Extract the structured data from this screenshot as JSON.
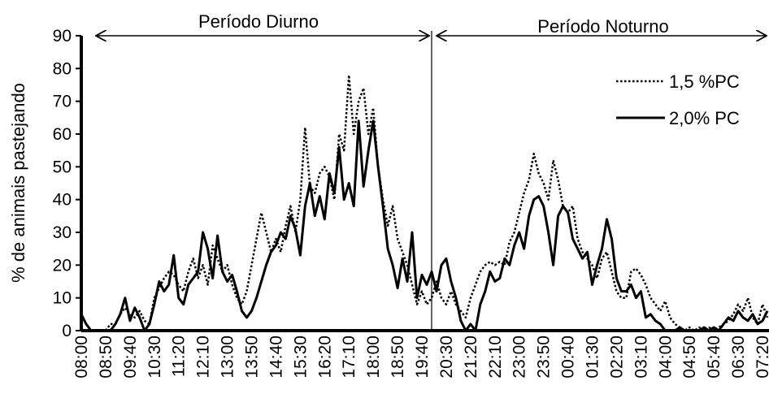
{
  "chart_data": {
    "type": "line",
    "y_label": "% de animais pastejando",
    "annotations": [
      "Período Diurno",
      "Período Noturno"
    ],
    "categories": [
      "08:00",
      null,
      null,
      null,
      null,
      "08:50",
      null,
      null,
      null,
      null,
      "09:40",
      null,
      null,
      null,
      null,
      "10:30",
      null,
      null,
      null,
      null,
      "11:20",
      null,
      null,
      null,
      null,
      "12:10",
      null,
      null,
      null,
      null,
      "13:00",
      null,
      null,
      null,
      null,
      "13:50",
      null,
      null,
      null,
      null,
      "14:40",
      null,
      null,
      null,
      null,
      "15:30",
      null,
      null,
      null,
      null,
      "16:20",
      null,
      null,
      null,
      null,
      "17:10",
      null,
      null,
      null,
      null,
      "18:00",
      null,
      null,
      null,
      null,
      "18:50",
      null,
      null,
      null,
      null,
      "19:40",
      null,
      null,
      null,
      null,
      "20:30",
      null,
      null,
      null,
      null,
      "21:20",
      null,
      null,
      null,
      null,
      "22:10",
      null,
      null,
      null,
      null,
      "23:00",
      null,
      null,
      null,
      null,
      "23:50",
      null,
      null,
      null,
      null,
      "00:40",
      null,
      null,
      null,
      null,
      "01:30",
      null,
      null,
      null,
      null,
      "02:20",
      null,
      null,
      null,
      null,
      "03:10",
      null,
      null,
      null,
      null,
      "04:00",
      null,
      null,
      null,
      null,
      "04:50",
      null,
      null,
      null,
      null,
      "05:40",
      null,
      null,
      null,
      null,
      "06:30",
      null,
      null,
      null,
      null,
      "07:20",
      null
    ],
    "series": [
      {
        "name": "1,5 %PC",
        "color": "#000000",
        "dash": "dotted",
        "values": [
          0,
          0,
          0,
          0,
          0,
          0,
          2,
          2,
          5,
          7,
          5,
          4,
          6,
          3,
          2,
          10,
          13,
          16,
          18,
          17,
          14,
          12,
          18,
          22,
          16,
          20,
          14,
          26,
          22,
          18,
          20,
          14,
          10,
          8,
          12,
          20,
          28,
          36,
          30,
          24,
          28,
          24,
          32,
          38,
          30,
          40,
          62,
          44,
          42,
          48,
          50,
          47,
          40,
          60,
          55,
          78,
          60,
          70,
          74,
          60,
          68,
          50,
          40,
          32,
          38,
          28,
          24,
          20,
          14,
          8,
          12,
          8,
          10,
          15,
          10,
          8,
          12,
          8,
          6,
          4,
          10,
          14,
          18,
          20,
          21,
          20,
          21,
          20,
          27,
          30,
          36,
          42,
          46,
          54,
          48,
          45,
          40,
          52,
          46,
          38,
          36,
          38,
          28,
          24,
          22,
          20,
          16,
          22,
          24,
          18,
          12,
          10,
          10,
          18,
          19,
          17,
          14,
          10,
          8,
          6,
          9,
          4,
          2,
          1,
          0,
          1,
          0,
          1,
          0,
          1,
          0,
          1,
          2,
          3,
          5,
          8,
          6,
          10,
          4,
          2,
          8,
          4
        ]
      },
      {
        "name": "2,0% PC",
        "color": "#000000",
        "dash": "solid",
        "values": [
          5,
          2,
          0,
          0,
          0,
          0,
          0,
          2,
          5,
          10,
          3,
          7,
          4,
          0,
          2,
          8,
          15,
          12,
          14,
          23,
          10,
          8,
          14,
          16,
          18,
          30,
          25,
          16,
          29,
          18,
          15,
          17,
          12,
          6,
          4,
          6,
          10,
          15,
          20,
          24,
          26,
          30,
          28,
          35,
          31,
          23,
          38,
          45,
          35,
          41,
          34,
          48,
          42,
          56,
          40,
          45,
          38,
          64,
          44,
          55,
          64,
          50,
          38,
          25,
          20,
          13,
          22,
          15,
          30,
          10,
          17,
          14,
          18,
          12,
          20,
          22,
          15,
          10,
          3,
          0,
          2,
          0,
          8,
          12,
          18,
          15,
          16,
          22,
          20,
          26,
          30,
          25,
          35,
          40,
          41,
          38,
          30,
          20,
          35,
          38,
          36,
          28,
          25,
          22,
          24,
          14,
          20,
          25,
          34,
          28,
          16,
          12,
          12,
          14,
          10,
          12,
          4,
          5,
          3,
          2,
          0,
          0,
          0,
          1,
          0,
          0,
          0,
          0,
          1,
          0,
          1,
          0,
          2,
          4,
          3,
          6,
          4,
          3,
          5,
          2,
          3,
          6
        ]
      }
    ],
    "ylim": [
      0,
      90
    ],
    "yticks": [
      0,
      10,
      20,
      30,
      40,
      50,
      60,
      70,
      80,
      90
    ],
    "grid": false
  }
}
